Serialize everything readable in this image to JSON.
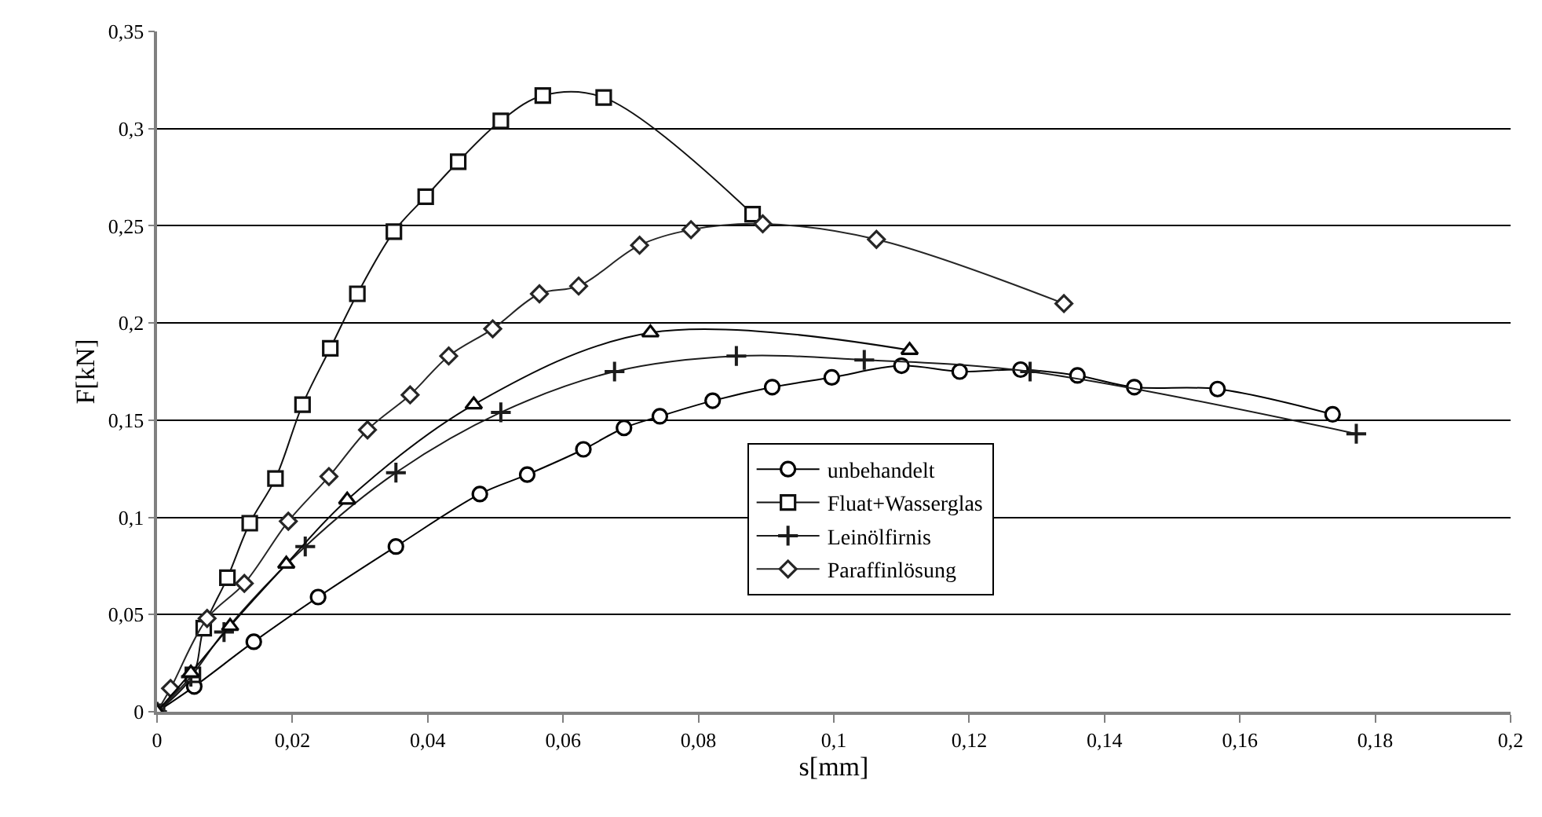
{
  "chart_data": {
    "type": "line",
    "xlabel": "s[mm]",
    "ylabel": "F[kN]",
    "xlim": [
      0,
      0.2
    ],
    "ylim": [
      0,
      0.35
    ],
    "xticks": [
      0,
      {
        "value": 0.02,
        "label": "0,02"
      },
      {
        "value": 0.04,
        "label": "0,04"
      },
      {
        "value": 0.06,
        "label": "0,06"
      },
      {
        "value": 0.08,
        "label": "0,08"
      },
      {
        "value": 0.1,
        "label": "0,1"
      },
      {
        "value": 0.12,
        "label": "0,12"
      },
      {
        "value": 0.14,
        "label": "0,14"
      },
      {
        "value": 0.16,
        "label": "0,16"
      },
      {
        "value": 0.18,
        "label": "0,18"
      },
      {
        "value": 0.2,
        "label": "0,2"
      }
    ],
    "yticks": [
      0,
      {
        "value": 0.05,
        "label": "0,05"
      },
      {
        "value": 0.1,
        "label": "0,1"
      },
      {
        "value": 0.15,
        "label": "0,15"
      },
      {
        "value": 0.2,
        "label": "0,2"
      },
      {
        "value": 0.25,
        "label": "0,25"
      },
      {
        "value": 0.3,
        "label": "0,3"
      },
      {
        "value": 0.35,
        "label": "0,35"
      }
    ],
    "grid": "y",
    "legend": "bottom right",
    "series": [
      {
        "name": "unbehandelt",
        "color": "#000000",
        "marker": "circle",
        "x": [
          0,
          0.0055,
          0.0143,
          0.0238,
          0.0353,
          0.0477,
          0.0547,
          0.063,
          0.069,
          0.0743,
          0.0821,
          0.0909,
          0.0997,
          0.11,
          0.1186,
          0.1276,
          0.136,
          0.1444,
          0.1567,
          0.1737
        ],
        "values": [
          0,
          0.013,
          0.036,
          0.059,
          0.085,
          0.112,
          0.122,
          0.135,
          0.146,
          0.152,
          0.16,
          0.167,
          0.172,
          0.178,
          0.175,
          0.176,
          0.173,
          0.167,
          0.166,
          0.153
        ]
      },
      {
        "name": "Fluat+Wasserglas",
        "color": "#111111",
        "marker": "square",
        "x": [
          0,
          0.0053,
          0.0069,
          0.0104,
          0.0137,
          0.0175,
          0.0215,
          0.0256,
          0.0296,
          0.035,
          0.0397,
          0.0445,
          0.0508,
          0.057,
          0.066,
          0.088
        ],
        "values": [
          0,
          0.019,
          0.043,
          0.069,
          0.097,
          0.12,
          0.158,
          0.187,
          0.215,
          0.247,
          0.265,
          0.283,
          0.304,
          0.317,
          0.316,
          0.256
        ]
      },
      {
        "name": "Leinölfirnis",
        "color": "#1c1c1c",
        "marker": "cross",
        "x": [
          0,
          0.005,
          0.0099,
          0.0219,
          0.0353,
          0.0508,
          0.0676,
          0.0856,
          0.1045,
          0.129,
          0.1772
        ],
        "values": [
          0,
          0.018,
          0.041,
          0.085,
          0.123,
          0.154,
          0.175,
          0.183,
          0.181,
          0.175,
          0.143
        ]
      },
      {
        "name": "Paraffinlösung",
        "color": "#262626",
        "marker": "diamond",
        "x": [
          0,
          0.002,
          0.0074,
          0.0129,
          0.0194,
          0.0254,
          0.0311,
          0.0374,
          0.0431,
          0.0496,
          0.0565,
          0.0623,
          0.0713,
          0.0789,
          0.0895,
          0.1063,
          0.134
        ],
        "values": [
          0,
          0.012,
          0.048,
          0.066,
          0.098,
          0.121,
          0.145,
          0.163,
          0.183,
          0.197,
          0.215,
          0.219,
          0.24,
          0.248,
          0.251,
          0.243,
          0.21
        ]
      },
      {
        "color": "#080808",
        "marker": "triangle",
        "x": [
          0,
          0.005,
          0.0108,
          0.0191,
          0.0281,
          0.0468,
          0.0729,
          0.1112
        ],
        "values": [
          0,
          0.02,
          0.044,
          0.076,
          0.109,
          0.158,
          0.195,
          0.186
        ]
      }
    ]
  }
}
